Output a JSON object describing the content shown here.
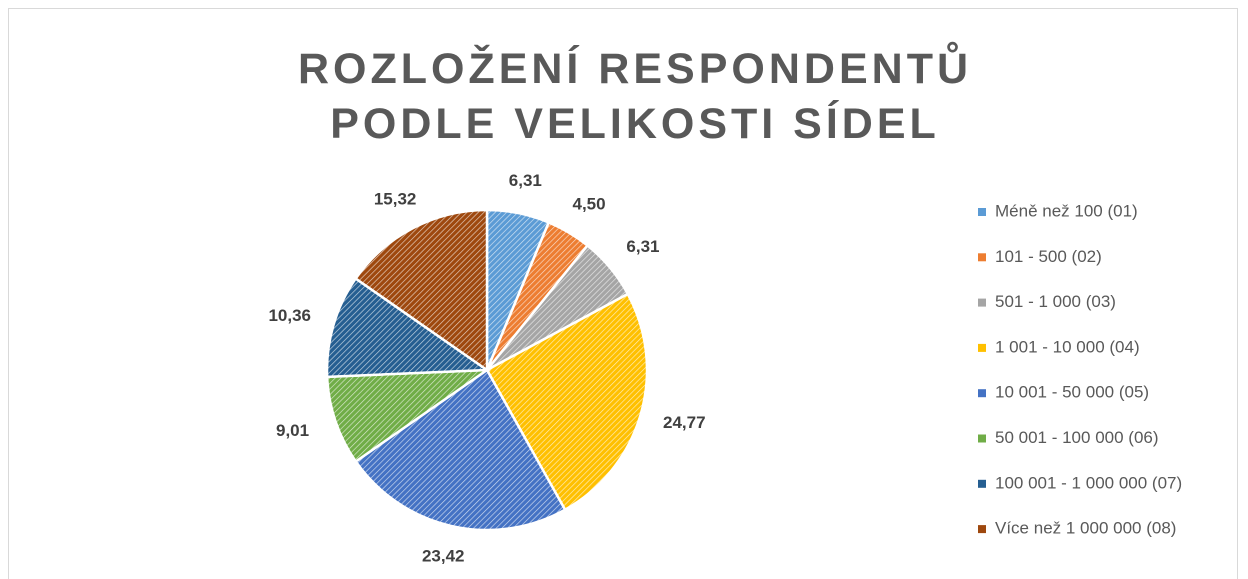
{
  "chart_data": {
    "type": "pie",
    "title": "ROZLOŽENÍ RESPONDENTŮ PODLE VELIKOSTI SÍDEL",
    "categories": [
      "Méně než 100 (01)",
      "101 - 500 (02)",
      "501 - 1 000 (03)",
      "1 001 - 10 000 (04)",
      "10 001 - 50 000 (05)",
      "50 001 - 100 000 (06)",
      "100 001 - 1 000 000 (07)",
      "Více než 1 000 000 (08)"
    ],
    "values": [
      6.31,
      4.5,
      6.31,
      24.77,
      23.42,
      9.01,
      10.36,
      15.32
    ],
    "value_labels": [
      "6,31",
      "4,50",
      "6,31",
      "24,77",
      "23,42",
      "9,01",
      "10,36",
      "15,32"
    ],
    "colors": [
      "#5b9bd5",
      "#ed7d31",
      "#a5a5a5",
      "#ffc000",
      "#4472c4",
      "#70ad47",
      "#255e91",
      "#9e480e"
    ],
    "legend": "right"
  }
}
